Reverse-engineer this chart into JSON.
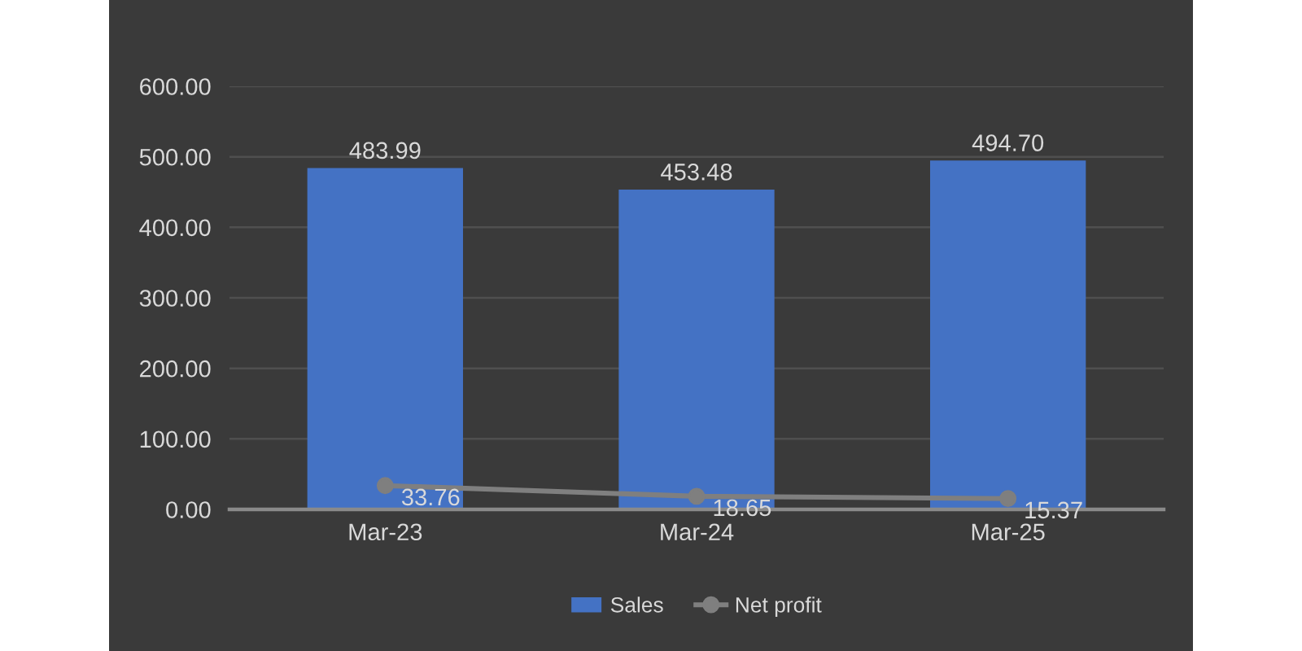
{
  "chart_data": {
    "type": "bar",
    "categories": [
      "Mar-23",
      "Mar-24",
      "Mar-25"
    ],
    "series": [
      {
        "name": "Sales",
        "color": "#4472c4",
        "values": [
          483.99,
          453.48,
          494.7
        ],
        "value_labels": [
          "483.99",
          "453.48",
          "494.70"
        ]
      },
      {
        "name": "Net profit",
        "type": "line",
        "color": "#7f7f7f",
        "values": [
          33.76,
          18.65,
          15.37
        ],
        "value_labels": [
          "33.76",
          "18.65",
          "15.37"
        ]
      }
    ],
    "ylim": [
      0,
      600
    ],
    "yticks": [
      {
        "value": 0,
        "label": "0.00"
      },
      {
        "value": 100,
        "label": "100.00"
      },
      {
        "value": 200,
        "label": "200.00"
      },
      {
        "value": 300,
        "label": "300.00"
      },
      {
        "value": 400,
        "label": "400.00"
      },
      {
        "value": 500,
        "label": "500.00"
      },
      {
        "value": 600,
        "label": "600.00"
      }
    ],
    "grid": "y",
    "legend": "bottom",
    "marker": "circle",
    "line_style": "solid"
  }
}
